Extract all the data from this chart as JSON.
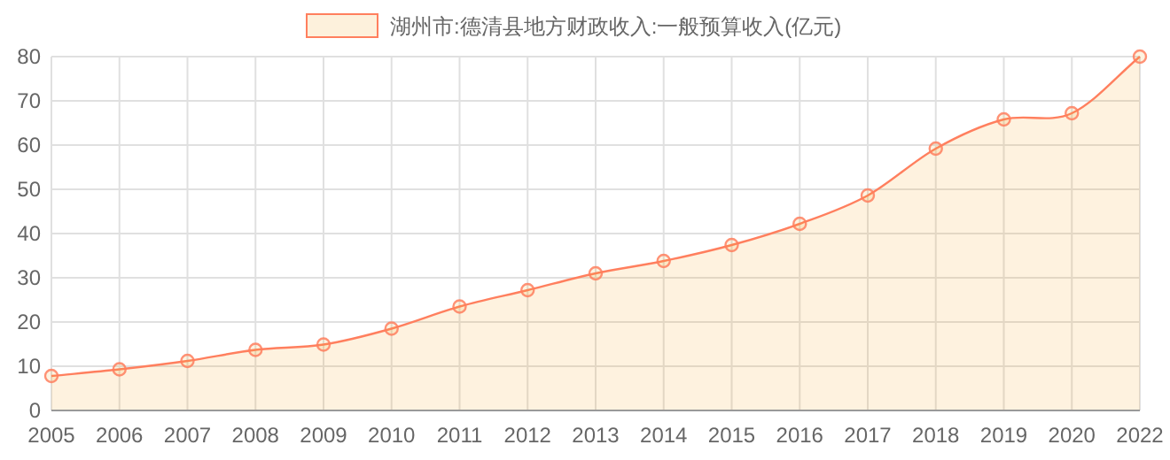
{
  "chart_data": {
    "type": "area",
    "categories": [
      "2005",
      "2006",
      "2007",
      "2008",
      "2009",
      "2010",
      "2011",
      "2012",
      "2013",
      "2014",
      "2015",
      "2016",
      "2017",
      "2018",
      "2019",
      "2020",
      "2022"
    ],
    "series": [
      {
        "name": "湖州市:德清县地方财政收入:一般预算收入(亿元)",
        "color": "#ff7f5e",
        "values": [
          7.8,
          9.3,
          11.2,
          13.7,
          14.9,
          18.5,
          23.5,
          27.2,
          31,
          33.8,
          37.4,
          42.2,
          48.6,
          59.2,
          65.8,
          67.2,
          80
        ]
      }
    ],
    "ylim": [
      0,
      80
    ],
    "yticks": [
      0,
      10,
      20,
      30,
      40,
      50,
      60,
      70,
      80
    ],
    "grid": true,
    "legend": "top",
    "marker": "circle"
  }
}
